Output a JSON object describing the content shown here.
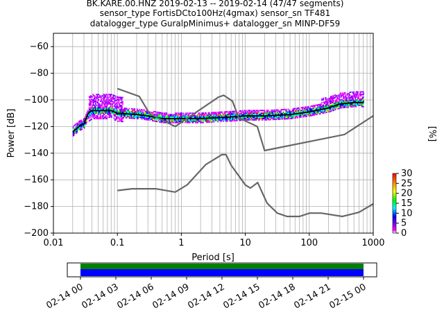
{
  "title_lines": [
    "BK.KARE.00.HNZ   2019-02-13 -- 2019-02-14  (47/47 segments)",
    "sensor_type FortisDCto100Hz(4gmax) sensor_sn TF481",
    "datalogger_type GuralpMinimus+ datalogger_sn MINP-DF59"
  ],
  "chart_data": {
    "type": "heatmap",
    "xlabel": "Period [s]",
    "ylabel": "Power [dB]",
    "xscale": "log",
    "xlim": [
      0.01,
      1000
    ],
    "ylim": [
      -200,
      -50
    ],
    "grid": true,
    "x_ticks": [
      "0.01",
      "0.1",
      "1",
      "10",
      "100",
      "1000"
    ],
    "y_ticks": [
      "-60",
      "-80",
      "-100",
      "-120",
      "-140",
      "-160",
      "-180",
      "-200"
    ],
    "colorbar": {
      "label": "[%]",
      "ticks": [
        "0",
        "5",
        "10",
        "15",
        "20",
        "25",
        "30"
      ],
      "range": [
        0,
        30
      ]
    },
    "series": [
      {
        "role": "mean",
        "color": "#000000",
        "points": [
          [
            0.02,
            -124
          ],
          [
            0.025,
            -120
          ],
          [
            0.03,
            -118
          ],
          [
            0.035,
            -110
          ],
          [
            0.04,
            -108
          ],
          [
            0.06,
            -108
          ],
          [
            0.08,
            -108
          ],
          [
            0.1,
            -110
          ],
          [
            0.2,
            -111
          ],
          [
            0.3,
            -112
          ],
          [
            0.5,
            -114
          ],
          [
            1,
            -114
          ],
          [
            2,
            -114
          ],
          [
            5,
            -113
          ],
          [
            10,
            -112
          ],
          [
            20,
            -112
          ],
          [
            50,
            -111
          ],
          [
            100,
            -109
          ],
          [
            200,
            -106
          ],
          [
            300,
            -103
          ],
          [
            500,
            -102
          ],
          [
            700,
            -102
          ]
        ]
      },
      {
        "role": "high-noise-model",
        "color": "#666666",
        "points": [
          [
            0.1,
            -91.5
          ],
          [
            0.22,
            -97.4
          ],
          [
            0.32,
            -110.5
          ],
          [
            0.8,
            -120
          ],
          [
            3.8,
            -97.9
          ],
          [
            4.6,
            -96.5
          ],
          [
            6.3,
            -101
          ],
          [
            7.9,
            -113.5
          ],
          [
            15.4,
            -120
          ],
          [
            20,
            -138
          ],
          [
            354.8,
            -126
          ],
          [
            1000,
            -112
          ]
        ]
      },
      {
        "role": "low-noise-model",
        "color": "#666666",
        "points": [
          [
            0.1,
            -168
          ],
          [
            0.17,
            -166.7
          ],
          [
            0.4,
            -166.7
          ],
          [
            0.8,
            -169.2
          ],
          [
            1.24,
            -163.7
          ],
          [
            2.4,
            -148.6
          ],
          [
            4.3,
            -141.1
          ],
          [
            5,
            -141.1
          ],
          [
            6,
            -149
          ],
          [
            10,
            -163.8
          ],
          [
            12,
            -166.2
          ],
          [
            15.6,
            -162.1
          ],
          [
            21.9,
            -177.5
          ],
          [
            31.6,
            -185
          ],
          [
            45,
            -187.5
          ],
          [
            70,
            -187.5
          ],
          [
            101,
            -185
          ],
          [
            154,
            -185
          ],
          [
            328,
            -187.5
          ],
          [
            600,
            -184.4
          ],
          [
            1000,
            -178
          ]
        ]
      }
    ],
    "coverage_timeline": {
      "ticks": [
        "02-14 00",
        "02-14 03",
        "02-14 06",
        "02-14 09",
        "02-14 12",
        "02-14 15",
        "02-14 18",
        "02-14 21",
        "02-15 00"
      ],
      "bars": [
        {
          "name": "data",
          "color": "#008000"
        },
        {
          "name": "used",
          "color": "#0000ff"
        }
      ]
    }
  }
}
